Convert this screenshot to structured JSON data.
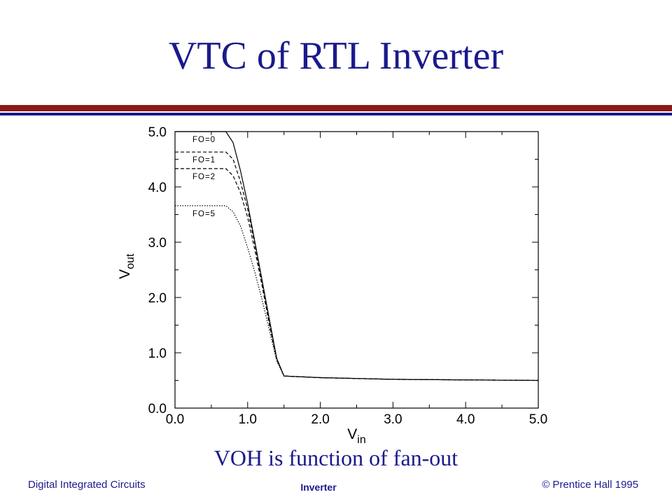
{
  "slide": {
    "title": "VTC of RTL Inverter",
    "subtitle": "VOH is function of fan-out"
  },
  "footer": {
    "left": "Digital Integrated Circuits",
    "center": "Inverter",
    "right": "© Prentice Hall 1995"
  },
  "colors": {
    "title": "#1a1a8c",
    "rule_red": "#8a1a1a",
    "rule_blue": "#1a1a8c"
  },
  "chart_data": {
    "type": "line",
    "title": "",
    "xlabel": "V",
    "xlabel_sub": "in",
    "ylabel": "V",
    "ylabel_sub": "out",
    "xlim": [
      0,
      5
    ],
    "ylim": [
      0,
      5
    ],
    "xticks": [
      "0.0",
      "1.0",
      "2.0",
      "3.0",
      "4.0",
      "5.0"
    ],
    "yticks": [
      "0.0",
      "1.0",
      "2.0",
      "3.0",
      "4.0",
      "5.0"
    ],
    "grid": false,
    "series": [
      {
        "name": "FO=0",
        "dash": "solid",
        "x": [
          0,
          0.7,
          0.8,
          0.9,
          1.0,
          1.1,
          1.2,
          1.3,
          1.4,
          1.5,
          2.0,
          3.0,
          4.0,
          5.0
        ],
        "y": [
          5.0,
          5.0,
          4.8,
          4.3,
          3.7,
          3.0,
          2.3,
          1.6,
          0.9,
          0.58,
          0.55,
          0.52,
          0.51,
          0.5
        ]
      },
      {
        "name": "FO=1",
        "dash": "dashed",
        "x": [
          0,
          0.7,
          0.8,
          0.9,
          1.0,
          1.1,
          1.2,
          1.3,
          1.4,
          1.5,
          2.0,
          3.0,
          4.0,
          5.0
        ],
        "y": [
          4.63,
          4.63,
          4.5,
          4.1,
          3.6,
          2.95,
          2.25,
          1.55,
          0.9,
          0.58,
          0.55,
          0.52,
          0.51,
          0.5
        ]
      },
      {
        "name": "FO=2",
        "dash": "dashed",
        "x": [
          0,
          0.7,
          0.8,
          0.9,
          1.0,
          1.1,
          1.2,
          1.3,
          1.4,
          1.5,
          2.0,
          3.0,
          4.0,
          5.0
        ],
        "y": [
          4.33,
          4.33,
          4.2,
          3.9,
          3.45,
          2.85,
          2.2,
          1.5,
          0.88,
          0.58,
          0.55,
          0.52,
          0.51,
          0.5
        ]
      },
      {
        "name": "FO=5",
        "dash": "dotted",
        "x": [
          0,
          0.7,
          0.8,
          0.9,
          1.0,
          1.1,
          1.2,
          1.3,
          1.4,
          1.5,
          2.0,
          3.0,
          4.0,
          5.0
        ],
        "y": [
          3.66,
          3.66,
          3.55,
          3.3,
          2.9,
          2.45,
          1.95,
          1.4,
          0.85,
          0.58,
          0.55,
          0.52,
          0.51,
          0.5
        ]
      }
    ]
  }
}
